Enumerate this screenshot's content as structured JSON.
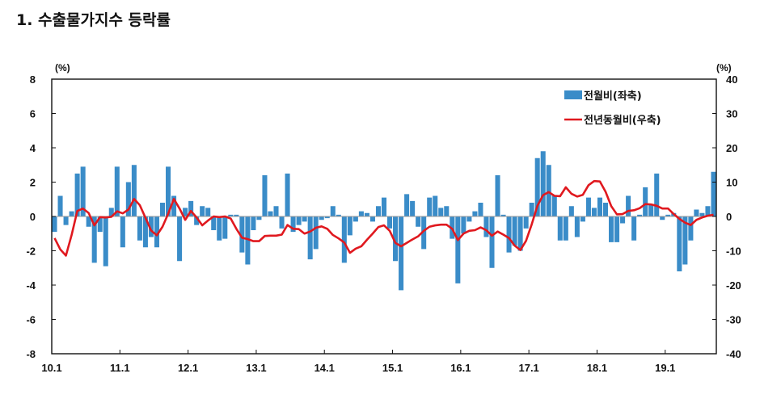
{
  "heading": "1. 수출물가지수 등락률",
  "chart_data": {
    "type": "bar+line",
    "left_unit": "(%)",
    "right_unit": "(%)",
    "left_ylim": [
      -8,
      8
    ],
    "left_ticks": [
      "8",
      "6",
      "4",
      "2",
      "0",
      "-2",
      "-4",
      "-6",
      "-8"
    ],
    "right_ylim": [
      -40,
      40
    ],
    "right_ticks": [
      "40",
      "30",
      "20",
      "10",
      "0",
      "-10",
      "-20",
      "-30",
      "-40"
    ],
    "x_tick_labels": [
      "10.1",
      "11.1",
      "12.1",
      "13.1",
      "14.1",
      "15.1",
      "16.1",
      "17.1",
      "18.1",
      "19.1"
    ],
    "grid": false,
    "legend_position": "top-right",
    "colors": {
      "bar": "#3a8cc8",
      "line": "#e0191f"
    },
    "series": [
      {
        "name": "전월비(좌축)",
        "axis": "left",
        "type": "bar",
        "values": [
          -0.9,
          1.2,
          -0.5,
          0.3,
          2.5,
          2.9,
          -0.6,
          -2.7,
          -0.9,
          -2.9,
          0.5,
          2.9,
          -1.8,
          2.0,
          3.0,
          -1.4,
          -1.8,
          -1.2,
          -1.8,
          0.8,
          2.9,
          1.2,
          -2.6,
          0.5,
          0.9,
          -0.5,
          0.6,
          0.5,
          -0.8,
          -1.4,
          -1.3,
          0.1,
          0.1,
          -2.1,
          -2.8,
          -0.8,
          -0.2,
          2.4,
          0.3,
          0.6,
          -0.7,
          2.5,
          -0.9,
          -0.5,
          -0.3,
          -2.5,
          -1.9,
          -0.2,
          -0.1,
          0.6,
          0.1,
          -2.7,
          -1.1,
          -0.3,
          0.3,
          0.2,
          -0.3,
          0.6,
          1.1,
          -0.7,
          -2.6,
          -4.3,
          1.3,
          0.9,
          -0.6,
          -1.9,
          1.1,
          1.2,
          0.5,
          0.6,
          -1.3,
          -3.9,
          -1.0,
          -0.3,
          0.3,
          0.8,
          -1.2,
          -3.0,
          2.4,
          0.1,
          -2.1,
          -1.7,
          -2.0,
          -0.7,
          0.8,
          3.4,
          3.8,
          3.0,
          1.2,
          -1.4,
          -1.4,
          0.6,
          -1.2,
          -0.3,
          1.1,
          0.5,
          1.1,
          0.8,
          -1.5,
          -1.5,
          -0.4,
          1.2,
          -1.4,
          0.1,
          1.7,
          0.7,
          2.5,
          -0.2,
          0.1,
          0.2,
          -3.2,
          -2.8,
          -1.4,
          0.4,
          0.2,
          0.6,
          2.6
        ]
      },
      {
        "name": "전년동월비(우축)",
        "axis": "right",
        "type": "line",
        "values": [
          -6.3,
          -9.6,
          -11.4,
          -5.4,
          1.6,
          2.3,
          1.0,
          -2.6,
          -0.2,
          -0.3,
          -0.1,
          1.5,
          0.9,
          2.0,
          5.1,
          3.3,
          -0.4,
          -4.1,
          -5.5,
          -3.0,
          0.8,
          5.1,
          2.3,
          -1.0,
          1.6,
          -0.3,
          -2.6,
          -1.2,
          0.0,
          -0.2,
          0.0,
          -0.6,
          -3.6,
          -6.2,
          -6.6,
          -7.2,
          -7.2,
          -5.7,
          -5.6,
          -5.6,
          -5.3,
          -2.5,
          -3.6,
          -3.7,
          -5.0,
          -4.4,
          -3.3,
          -2.9,
          -3.6,
          -5.4,
          -6.4,
          -7.6,
          -10.6,
          -9.4,
          -8.7,
          -6.8,
          -5.0,
          -3.1,
          -2.6,
          -4.2,
          -7.7,
          -8.7,
          -7.7,
          -6.7,
          -5.8,
          -4.2,
          -3.0,
          -2.6,
          -2.4,
          -2.4,
          -3.6,
          -6.9,
          -5.0,
          -4.2,
          -4.0,
          -3.2,
          -4.0,
          -5.6,
          -4.4,
          -5.3,
          -6.3,
          -8.5,
          -9.8,
          -7.1,
          -2.3,
          3.1,
          6.2,
          7.1,
          6.0,
          5.9,
          8.5,
          6.6,
          5.8,
          6.3,
          9.1,
          10.3,
          10.2,
          7.2,
          3.0,
          0.6,
          0.7,
          1.6,
          1.8,
          2.4,
          3.6,
          3.5,
          3.1,
          2.3,
          2.3,
          0.7,
          -0.7,
          -1.8,
          -2.5,
          -1.0,
          -0.3,
          0.2,
          0.5
        ]
      }
    ]
  }
}
